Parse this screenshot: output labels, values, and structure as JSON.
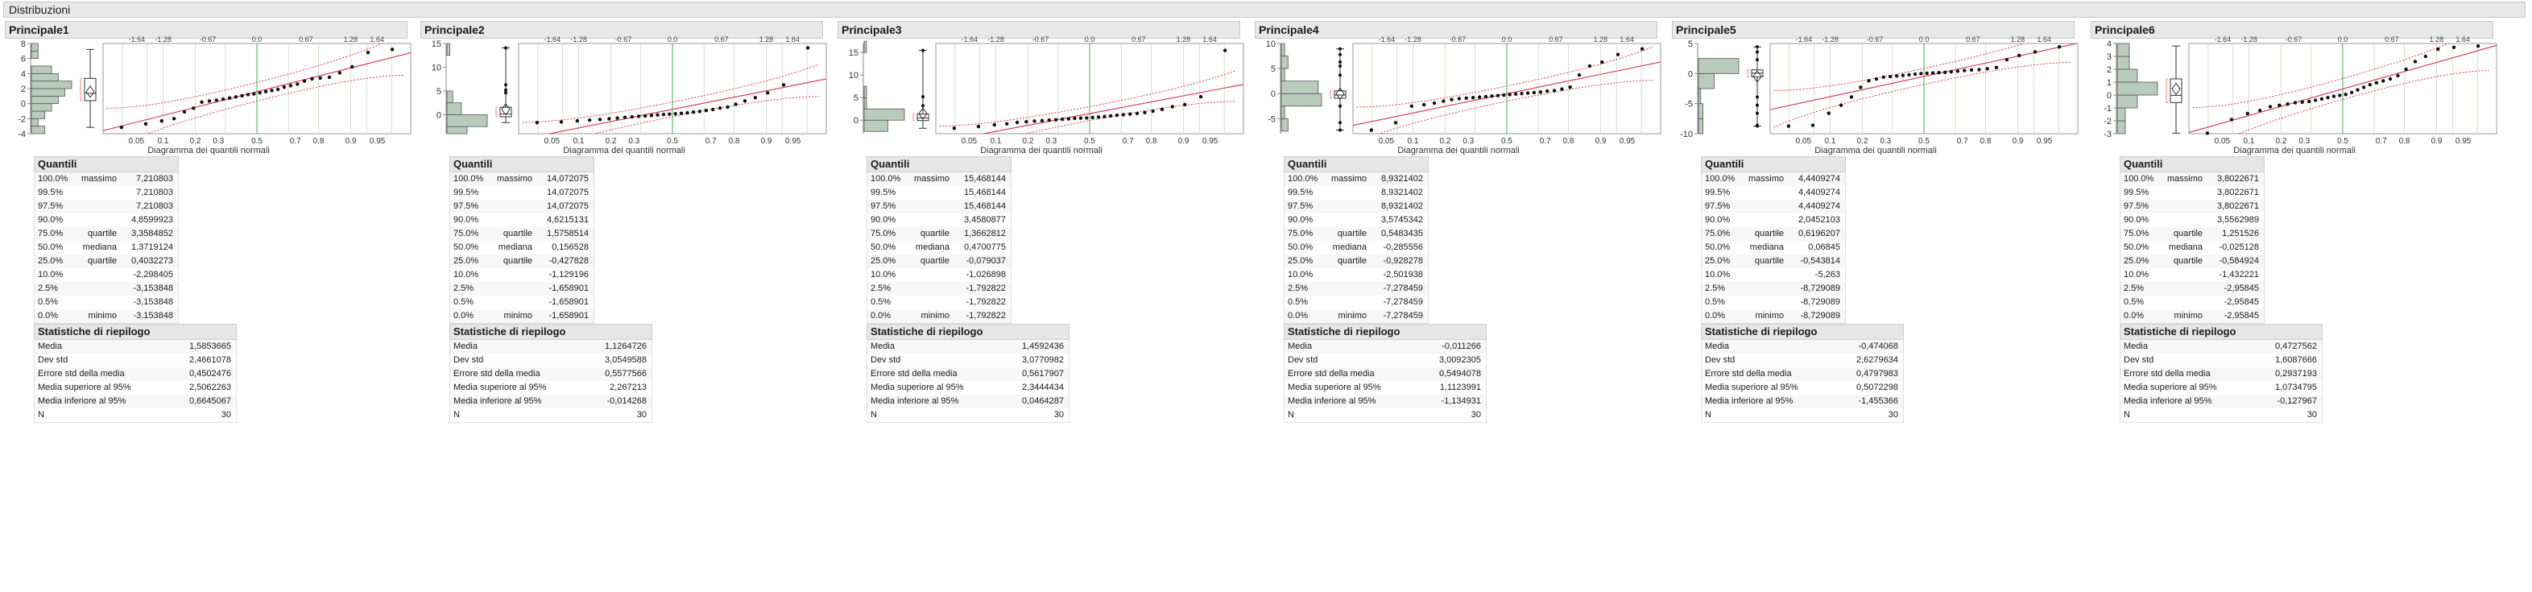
{
  "report_title": "Distribuzioni",
  "labels": {
    "quantiles_heading": "Quantili",
    "summary_heading": "Statistiche di riepilogo",
    "normal_quantile_axis_label": "Diagramma dei quantili normali",
    "quantile_percents": [
      "100.0%",
      "99.5%",
      "97.5%",
      "90.0%",
      "75.0%",
      "50.0%",
      "25.0%",
      "10.0%",
      "2.5%",
      "0.5%",
      "0.0%"
    ],
    "quantile_names": [
      "massimo",
      "",
      "",
      "",
      "quartile",
      "mediana",
      "quartile",
      "",
      "",
      "",
      "minimo"
    ],
    "summary_labels": [
      "Media",
      "Dev std",
      "Errore std della media",
      "Media superiore al 95%",
      "Media inferiore al 95%",
      "N"
    ]
  },
  "colors": {
    "histogram_fill": "#b9ccbc",
    "fit_line": "#e03c5a",
    "median_line": "#3fb34a",
    "gridline": "#cfe3c9",
    "outlier_box": "#ff8080"
  },
  "chart_data": [
    {
      "name": "Principale1",
      "type": "histogram+boxplot+normal_quantile_plot",
      "ylim": [
        -4,
        8
      ],
      "y_ticks": [
        -4,
        -2,
        0,
        2,
        4,
        6,
        8
      ],
      "hist_bin_edges": [
        -4,
        -3,
        -2,
        -1,
        0,
        1,
        2,
        3,
        4,
        5,
        6,
        7,
        8
      ],
      "hist_counts": [
        2,
        1,
        2,
        3,
        4,
        5,
        6,
        4,
        3,
        0,
        1,
        1
      ],
      "box": {
        "min": -3.153848,
        "q1": 0.4032273,
        "median": 1.3719124,
        "q3": 3.3584852,
        "max": 7.210803,
        "mean": 1.5853665
      },
      "fit": {
        "mean": 1.5853665,
        "std": 2.4661078,
        "n": 30
      },
      "outliers": [],
      "values": [
        -3.153848,
        -2.7,
        -2.3,
        -2.0,
        -1.1,
        -0.6,
        0.2,
        0.35,
        0.45,
        0.6,
        0.75,
        0.9,
        1.05,
        1.2,
        1.3,
        1.45,
        1.6,
        1.75,
        1.9,
        2.2,
        2.4,
        2.6,
        3.0,
        3.3,
        3.4,
        3.5,
        4.1,
        4.9,
        6.8,
        7.210803
      ],
      "quantiles": [
        "7,210803",
        "7,210803",
        "7,210803",
        "4,8599923",
        "3,3584852",
        "1,3719124",
        "0,4032273",
        "-2,298405",
        "-3,153848",
        "-3,153848",
        "-3,153848"
      ],
      "summary": [
        "1,5853665",
        "2,4661078",
        "0,4502476",
        "2,5062263",
        "0,6645067",
        "30"
      ]
    },
    {
      "name": "Principale2",
      "type": "histogram+boxplot+normal_quantile_plot",
      "ylim": [
        -4,
        15
      ],
      "y_ticks": [
        0,
        5,
        10,
        15
      ],
      "hist_bin_edges": [
        -4,
        -2.5,
        0,
        2.5,
        5,
        7.5,
        10,
        12.5,
        15
      ],
      "hist_counts": [
        7,
        14,
        5,
        2,
        0,
        0,
        0,
        1
      ],
      "box": {
        "min": -1.658901,
        "q1": -0.427828,
        "median": 0.156528,
        "q3": 1.5758514,
        "max": 14.072075,
        "mean": 1.1264726
      },
      "fit": {
        "mean": 1.1264726,
        "std": 3.0549588,
        "n": 30
      },
      "outliers": [
        4.6,
        5.2,
        6.3,
        14.072075
      ],
      "values": [
        -1.658901,
        -1.5,
        -1.3,
        -1.129196,
        -1.0,
        -0.85,
        -0.7,
        -0.55,
        -0.45,
        -0.35,
        -0.25,
        -0.15,
        -0.05,
        0.05,
        0.12,
        0.2,
        0.3,
        0.4,
        0.55,
        0.7,
        0.9,
        1.1,
        1.4,
        1.6,
        2.2,
        2.9,
        3.6,
        4.6,
        6.3,
        14.072075
      ],
      "quantiles": [
        "14,072075",
        "14,072075",
        "14,072075",
        "4,6215131",
        "1,5758514",
        "0,156528",
        "-0,427828",
        "-1,129196",
        "-1,658901",
        "-1,658901",
        "-1,658901"
      ],
      "summary": [
        "1,1264726",
        "3,0549588",
        "0,5577566",
        "2,267213",
        "-0,014268",
        "30"
      ]
    },
    {
      "name": "Principale3",
      "type": "histogram+boxplot+normal_quantile_plot",
      "ylim": [
        -3,
        17
      ],
      "y_ticks": [
        0,
        5,
        10,
        15
      ],
      "hist_bin_edges": [
        -2.5,
        0,
        2.5,
        5,
        7.5,
        10,
        12.5,
        15,
        17.5
      ],
      "hist_counts": [
        10,
        17,
        1,
        1,
        0,
        0,
        0,
        1
      ],
      "box": {
        "min": -1.792822,
        "q1": -0.079037,
        "median": 0.4700775,
        "q3": 1.3662812,
        "max": 15.468144,
        "mean": 1.4592436
      },
      "fit": {
        "mean": 1.4592436,
        "std": 3.0770982,
        "n": 30
      },
      "outliers": [
        3.2,
        5.2,
        15.468144
      ],
      "values": [
        -1.792822,
        -1.4,
        -1.026898,
        -0.8,
        -0.5,
        -0.35,
        -0.2,
        -0.1,
        0.0,
        0.1,
        0.2,
        0.3,
        0.4,
        0.45,
        0.5,
        0.6,
        0.7,
        0.8,
        0.95,
        1.1,
        1.2,
        1.35,
        1.5,
        1.7,
        2.0,
        2.4,
        3.0,
        3.45,
        5.2,
        15.468144
      ],
      "quantiles": [
        "15,468144",
        "15,468144",
        "15,468144",
        "3,4580877",
        "1,3662812",
        "0,4700775",
        "-0,079037",
        "-1,026898",
        "-1,792822",
        "-1,792822",
        "-1,792822"
      ],
      "summary": [
        "1,4592436",
        "3,0770982",
        "0,5617907",
        "2,3444434",
        "0,0464287",
        "30"
      ]
    },
    {
      "name": "Principale4",
      "type": "histogram+boxplot+normal_quantile_plot",
      "ylim": [
        -8,
        10
      ],
      "y_ticks": [
        -5,
        0,
        5,
        10
      ],
      "hist_bin_edges": [
        -7.5,
        -5,
        -2.5,
        0,
        2.5,
        5,
        7.5,
        10
      ],
      "hist_counts": [
        2,
        1,
        12,
        11,
        1,
        2,
        1
      ],
      "box": {
        "min": -7.278459,
        "q1": -0.928278,
        "median": -0.285556,
        "q3": 0.5483435,
        "max": 8.9321402,
        "mean": -0.011266
      },
      "fit": {
        "mean": -0.011266,
        "std": 3.0092305,
        "n": 30
      },
      "outliers": [
        -7.278459,
        -5.8,
        -2.501938,
        3.7,
        5.5,
        6.3,
        7.8,
        8.9321402
      ],
      "values": [
        -7.278459,
        -5.8,
        -2.501938,
        -2.2,
        -1.9,
        -1.5,
        -1.2,
        -1.0,
        -0.9,
        -0.8,
        -0.7,
        -0.6,
        -0.5,
        -0.4,
        -0.3,
        -0.2,
        -0.1,
        0.0,
        0.1,
        0.2,
        0.3,
        0.5,
        0.6,
        0.9,
        1.3,
        3.7,
        5.5,
        6.3,
        7.8,
        8.9321402
      ],
      "quantiles": [
        "8,9321402",
        "8,9321402",
        "8,9321402",
        "3,5745342",
        "0,5483435",
        "-0,285556",
        "-0,928278",
        "-2,501938",
        "-7,278459",
        "-7,278459",
        "-7,278459"
      ],
      "summary": [
        "-0,011266",
        "3,0092305",
        "0,5494078",
        "1,1123991",
        "-1,134931",
        "30"
      ]
    },
    {
      "name": "Principale5",
      "type": "histogram+boxplot+normal_quantile_plot",
      "ylim": [
        -10,
        5
      ],
      "y_ticks": [
        -10,
        -5,
        0,
        5
      ],
      "hist_bin_edges": [
        -10,
        -7.5,
        -5,
        -2.5,
        0,
        2.5,
        5
      ],
      "hist_counts": [
        2,
        2,
        1,
        7,
        18,
        0
      ],
      "box": {
        "min": -8.729089,
        "q1": -0.543814,
        "median": 0.06845,
        "q3": 0.6196207,
        "max": 4.4409274,
        "mean": -0.474068
      },
      "fit": {
        "mean": -0.474068,
        "std": 2.6279634,
        "n": 30
      },
      "outliers": [
        -8.729089,
        -8.6,
        -6.6,
        -5.263,
        -3.9,
        2.3,
        3.6,
        4.4409274
      ],
      "values": [
        -8.729089,
        -8.6,
        -6.6,
        -5.263,
        -3.9,
        -2.3,
        -1.2,
        -0.9,
        -0.6,
        -0.5,
        -0.4,
        -0.3,
        -0.2,
        -0.1,
        0.0,
        0.05,
        0.1,
        0.15,
        0.2,
        0.3,
        0.4,
        0.5,
        0.6,
        0.65,
        0.8,
        1.0,
        2.3,
        3.0,
        3.6,
        4.4409274
      ],
      "quantiles": [
        "4,4409274",
        "4,4409274",
        "4,4409274",
        "2,0452103",
        "0,6196207",
        "0,06845",
        "-0,543814",
        "-5,263",
        "-8,729089",
        "-8,729089",
        "-8,729089"
      ],
      "summary": [
        "-0,474068",
        "2,6279634",
        "0,4797983",
        "0,5072298",
        "-1,455366",
        "30"
      ]
    },
    {
      "name": "Principale6",
      "type": "histogram+boxplot+normal_quantile_plot",
      "ylim": [
        -3,
        4
      ],
      "y_ticks": [
        -3,
        -2,
        -1,
        0,
        1,
        2,
        3,
        4
      ],
      "hist_bin_edges": [
        -3,
        -2,
        -1,
        0,
        1,
        2,
        3,
        4
      ],
      "hist_counts": [
        2,
        2,
        5,
        10,
        5,
        3,
        3
      ],
      "box": {
        "min": -2.95845,
        "q1": -0.584924,
        "median": -0.025128,
        "q3": 1.251526,
        "max": 3.8022671,
        "mean": 0.4727562
      },
      "fit": {
        "mean": 0.4727562,
        "std": 1.6087666,
        "n": 30
      },
      "outliers": [],
      "values": [
        -2.95845,
        -1.9,
        -1.432221,
        -1.2,
        -0.9,
        -0.8,
        -0.7,
        -0.6,
        -0.55,
        -0.5,
        -0.4,
        -0.3,
        -0.2,
        -0.1,
        -0.03,
        0.05,
        0.2,
        0.4,
        0.6,
        0.8,
        0.95,
        1.1,
        1.25,
        1.5,
        2.0,
        2.6,
        3.0,
        3.556,
        3.7,
        3.8022671
      ],
      "quantiles": [
        "3,8022671",
        "3,8022671",
        "3,8022671",
        "3,5562989",
        "1,251526",
        "-0,025128",
        "-0,584924",
        "-1,432221",
        "-2,95845",
        "-2,95845",
        "-2,95845"
      ],
      "summary": [
        "0,4727562",
        "1,6087666",
        "0,2937193",
        "1,0734795",
        "-0,127967",
        "30"
      ]
    }
  ]
}
